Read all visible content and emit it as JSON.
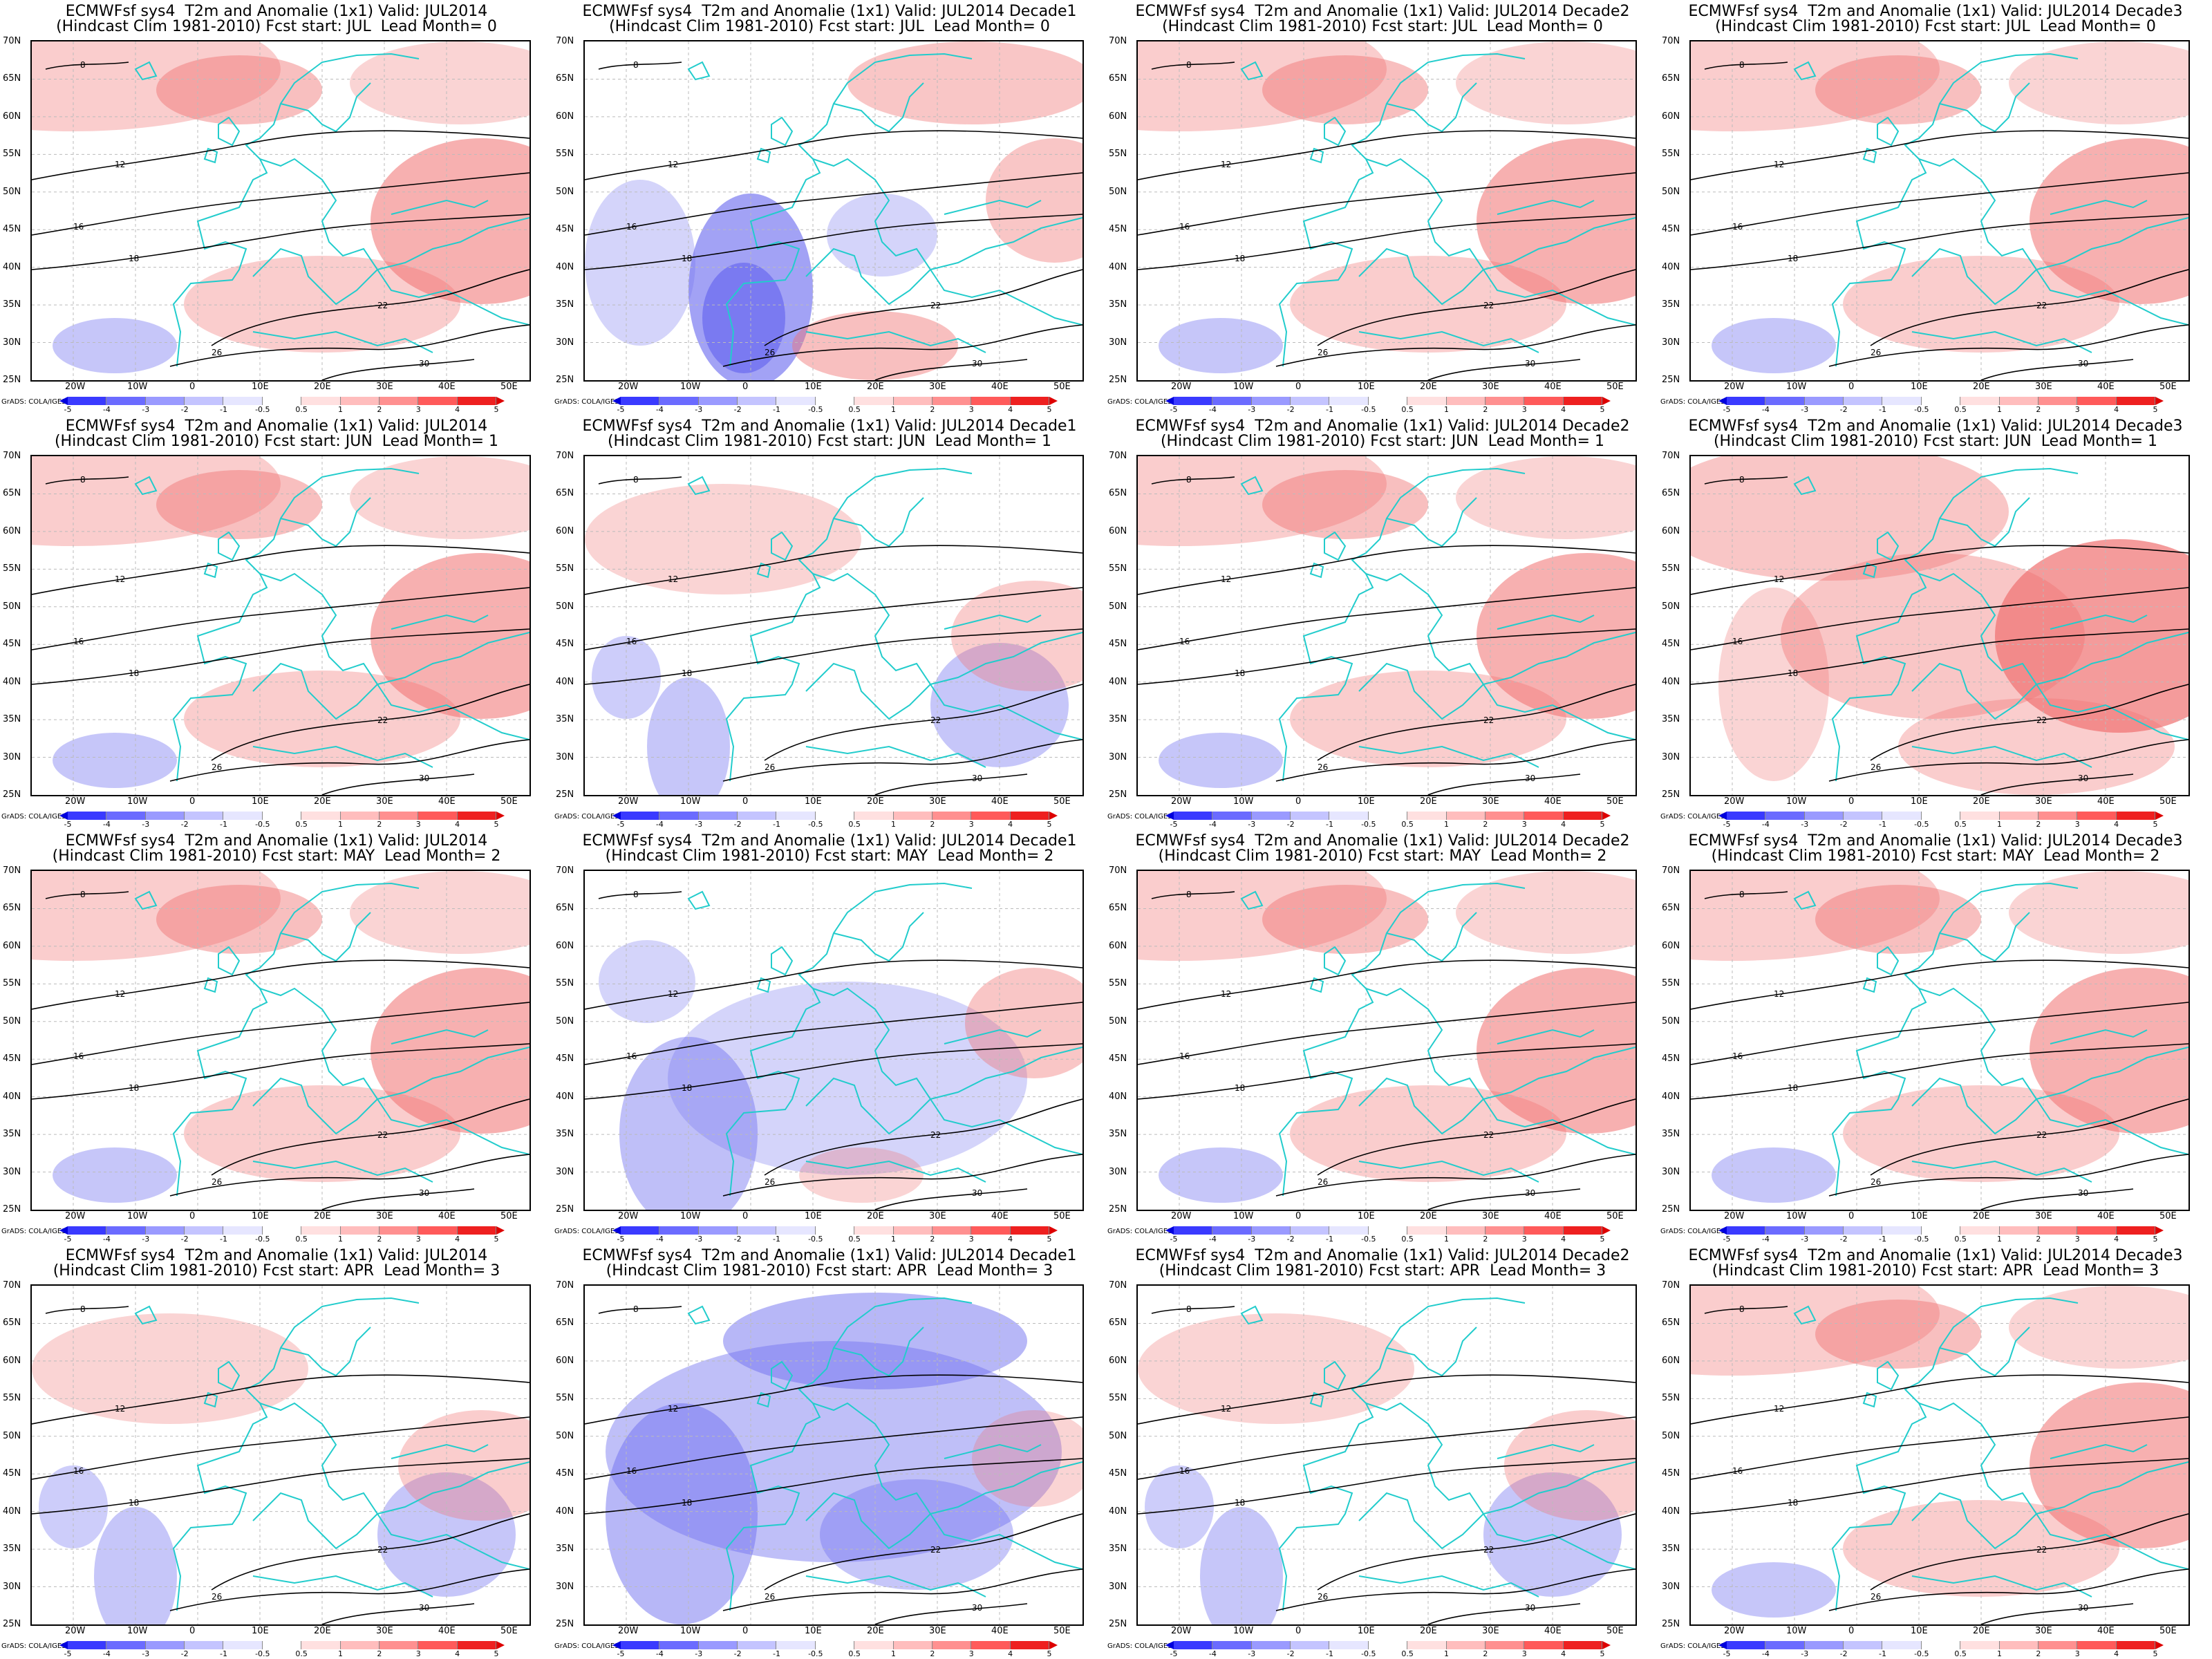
{
  "colorbar": {
    "labels": [
      "-5",
      "-4",
      "-3",
      "-2",
      "-1",
      "-0.5",
      "0.5",
      "1",
      "2",
      "3",
      "4",
      "5"
    ],
    "colors": [
      "#0000dd",
      "#3a3aff",
      "#6b6bff",
      "#9a9aff",
      "#c4c4ff",
      "#e6e6ff",
      "#ffffff",
      "#ffe0e0",
      "#ffbdbd",
      "#ff9090",
      "#ff5a5a",
      "#ee2020",
      "#dd0000"
    ]
  },
  "axes": {
    "lat_labels": [
      "70N",
      "65N",
      "60N",
      "55N",
      "50N",
      "45N",
      "40N",
      "35N",
      "30N",
      "25N"
    ],
    "lon_labels": [
      "20W",
      "10W",
      "0",
      "10E",
      "20E",
      "30E",
      "40E",
      "50E"
    ]
  },
  "credit": "GrADS: COLA/IGES",
  "contour_labels": [
    "8",
    "12",
    "16",
    "18",
    "22",
    "26",
    "30"
  ],
  "colors": {
    "anomaly_warm": "#f07070",
    "anomaly_cold": "#7070f0",
    "coastline": "#22cccc",
    "contour": "#000000"
  },
  "panels": [
    {
      "line1": "ECMWFsf sys4  T2m and Anomalie (1x1) Valid: JUL2014",
      "line2": "(Hindcast Clim 1981-2010) Fcst start: JUL  Lead Month= 0",
      "anomaly": "warm"
    },
    {
      "line1": "ECMWFsf sys4  T2m and Anomalie (1x1) Valid: JUL2014 Decade1",
      "line2": "(Hindcast Clim 1981-2010) Fcst start: JUL  Lead Month= 0",
      "anomaly": "mixed-cold-west"
    },
    {
      "line1": "ECMWFsf sys4  T2m and Anomalie (1x1) Valid: JUL2014 Decade2",
      "line2": "(Hindcast Clim 1981-2010) Fcst start: JUL  Lead Month= 0",
      "anomaly": "warm"
    },
    {
      "line1": "ECMWFsf sys4  T2m and Anomalie (1x1) Valid: JUL2014 Decade3",
      "line2": "(Hindcast Clim 1981-2010) Fcst start: JUL  Lead Month= 0",
      "anomaly": "warm"
    },
    {
      "line1": "ECMWFsf sys4  T2m and Anomalie (1x1) Valid: JUL2014",
      "line2": "(Hindcast Clim 1981-2010) Fcst start: JUN  Lead Month= 1",
      "anomaly": "warm"
    },
    {
      "line1": "ECMWFsf sys4  T2m and Anomalie (1x1) Valid: JUL2014 Decade1",
      "line2": "(Hindcast Clim 1981-2010) Fcst start: JUN  Lead Month= 1",
      "anomaly": "mixed"
    },
    {
      "line1": "ECMWFsf sys4  T2m and Anomalie (1x1) Valid: JUL2014 Decade2",
      "line2": "(Hindcast Clim 1981-2010) Fcst start: JUN  Lead Month= 1",
      "anomaly": "warm"
    },
    {
      "line1": "ECMWFsf sys4  T2m and Anomalie (1x1) Valid: JUL2014 Decade3",
      "line2": "(Hindcast Clim 1981-2010) Fcst start: JUN  Lead Month= 1",
      "anomaly": "warm-strong"
    },
    {
      "line1": "ECMWFsf sys4  T2m and Anomalie (1x1) Valid: JUL2014",
      "line2": "(Hindcast Clim 1981-2010) Fcst start: MAY  Lead Month= 2",
      "anomaly": "warm"
    },
    {
      "line1": "ECMWFsf sys4  T2m and Anomalie (1x1) Valid: JUL2014 Decade1",
      "line2": "(Hindcast Clim 1981-2010) Fcst start: MAY  Lead Month= 2",
      "anomaly": "cold"
    },
    {
      "line1": "ECMWFsf sys4  T2m and Anomalie (1x1) Valid: JUL2014 Decade2",
      "line2": "(Hindcast Clim 1981-2010) Fcst start: MAY  Lead Month= 2",
      "anomaly": "warm"
    },
    {
      "line1": "ECMWFsf sys4  T2m and Anomalie (1x1) Valid: JUL2014 Decade3",
      "line2": "(Hindcast Clim 1981-2010) Fcst start: MAY  Lead Month= 2",
      "anomaly": "warm"
    },
    {
      "line1": "ECMWFsf sys4  T2m and Anomalie (1x1) Valid: JUL2014",
      "line2": "(Hindcast Clim 1981-2010) Fcst start: APR  Lead Month= 3",
      "anomaly": "mixed"
    },
    {
      "line1": "ECMWFsf sys4  T2m and Anomalie (1x1) Valid: JUL2014 Decade1",
      "line2": "(Hindcast Clim 1981-2010) Fcst start: APR  Lead Month= 3",
      "anomaly": "cold-strong"
    },
    {
      "line1": "ECMWFsf sys4  T2m and Anomalie (1x1) Valid: JUL2014 Decade2",
      "line2": "(Hindcast Clim 1981-2010) Fcst start: APR  Lead Month= 3",
      "anomaly": "mixed"
    },
    {
      "line1": "ECMWFsf sys4  T2m and Anomalie (1x1) Valid: JUL2014 Decade3",
      "line2": "(Hindcast Clim 1981-2010) Fcst start: APR  Lead Month= 3",
      "anomaly": "warm"
    }
  ]
}
